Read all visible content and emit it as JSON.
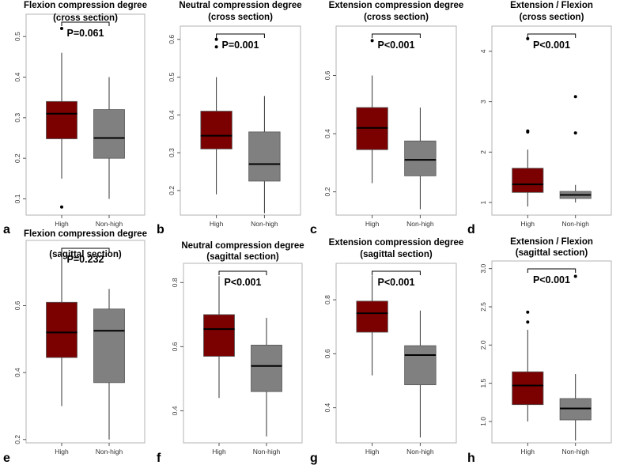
{
  "colors": {
    "high": "#7b0000",
    "nonhigh": "#808080",
    "frame": "#b3b3b3",
    "whisker": "#333333"
  },
  "chart_data": [
    {
      "type": "boxplot",
      "letter": "a",
      "title": [
        "Flexion compression degree",
        "(cross section)"
      ],
      "pvalue": "P=0.061",
      "categories": [
        "High",
        "Non-high"
      ],
      "ylim": [
        0.06,
        0.555
      ],
      "yticks": [
        0.1,
        0.2,
        0.3,
        0.4,
        0.5
      ],
      "ytick_labels": [
        "0.1",
        "0.2",
        "0.3",
        "0.4",
        "0.5"
      ],
      "boxes": [
        {
          "min": 0.15,
          "q1": 0.248,
          "median": 0.31,
          "q3": 0.34,
          "max": 0.46,
          "outliers": [
            0.52,
            0.08
          ]
        },
        {
          "min": 0.1,
          "q1": 0.2,
          "median": 0.25,
          "q3": 0.32,
          "max": 0.4,
          "outliers": []
        }
      ]
    },
    {
      "type": "boxplot",
      "letter": "b",
      "title": [
        "Neutral compression degree",
        "(cross section)"
      ],
      "pvalue": "P=0.001",
      "categories": [
        "High",
        "Non-high"
      ],
      "ylim": [
        0.135,
        0.635
      ],
      "yticks": [
        0.2,
        0.3,
        0.4,
        0.5,
        0.6
      ],
      "ytick_labels": [
        "0.2",
        "0.3",
        "0.4",
        "0.5",
        "0.6"
      ],
      "boxes": [
        {
          "min": 0.19,
          "q1": 0.31,
          "median": 0.345,
          "q3": 0.41,
          "max": 0.5,
          "outliers": [
            0.6,
            0.58
          ]
        },
        {
          "min": 0.14,
          "q1": 0.225,
          "median": 0.27,
          "q3": 0.355,
          "max": 0.45,
          "outliers": []
        }
      ]
    },
    {
      "type": "boxplot",
      "letter": "c",
      "title": [
        "Extension compression degree",
        "(cross section)"
      ],
      "pvalue": "P<0.001",
      "categories": [
        "High",
        "Non-high"
      ],
      "ylim": [
        0.12,
        0.77
      ],
      "yticks": [
        0.2,
        0.4,
        0.6
      ],
      "ytick_labels": [
        "0.2",
        "0.4",
        "0.6"
      ],
      "boxes": [
        {
          "min": 0.23,
          "q1": 0.345,
          "median": 0.42,
          "q3": 0.49,
          "max": 0.6,
          "outliers": [
            0.72
          ]
        },
        {
          "min": 0.14,
          "q1": 0.255,
          "median": 0.31,
          "q3": 0.375,
          "max": 0.49,
          "outliers": []
        }
      ]
    },
    {
      "type": "boxplot",
      "letter": "d",
      "title": [
        "Extension / Flexion",
        "(cross section)"
      ],
      "pvalue": "P<0.001",
      "categories": [
        "High",
        "Non-high"
      ],
      "ylim": [
        0.75,
        4.5
      ],
      "yticks": [
        1,
        2,
        3,
        4
      ],
      "ytick_labels": [
        "1",
        "2",
        "3",
        "4"
      ],
      "boxes": [
        {
          "min": 0.92,
          "q1": 1.2,
          "median": 1.36,
          "q3": 1.68,
          "max": 2.05,
          "outliers": [
            4.25,
            2.42,
            2.4
          ]
        },
        {
          "min": 1.0,
          "q1": 1.08,
          "median": 1.15,
          "q3": 1.22,
          "max": 1.35,
          "outliers": [
            3.1,
            2.38
          ]
        }
      ]
    },
    {
      "type": "boxplot",
      "letter": "e",
      "title": [
        "Flexion compression degree",
        "(sagittal section)"
      ],
      "pvalue": "P=0.232",
      "categories": [
        "High",
        "Non-high"
      ],
      "ylim": [
        0.19,
        0.795
      ],
      "yticks": [
        0.2,
        0.4,
        0.6
      ],
      "ytick_labels": [
        "0.2",
        "0.4",
        "0.6"
      ],
      "boxes": [
        {
          "min": 0.3,
          "q1": 0.445,
          "median": 0.52,
          "q3": 0.61,
          "max": 0.76,
          "outliers": []
        },
        {
          "min": 0.2,
          "q1": 0.37,
          "median": 0.525,
          "q3": 0.59,
          "max": 0.65,
          "outliers": []
        }
      ]
    },
    {
      "type": "boxplot",
      "letter": "f",
      "title": [
        "Neutral compression degree",
        "(sagittal section)"
      ],
      "pvalue": "P<0.001",
      "categories": [
        "High",
        "Non-high"
      ],
      "ylim": [
        0.3,
        0.86
      ],
      "yticks": [
        0.4,
        0.6,
        0.8
      ],
      "ytick_labels": [
        "0.4",
        "0.6",
        "0.8"
      ],
      "boxes": [
        {
          "min": 0.44,
          "q1": 0.57,
          "median": 0.655,
          "q3": 0.7,
          "max": 0.82,
          "outliers": []
        },
        {
          "min": 0.32,
          "q1": 0.46,
          "median": 0.54,
          "q3": 0.605,
          "max": 0.69,
          "outliers": []
        }
      ]
    },
    {
      "type": "boxplot",
      "letter": "g",
      "title": [
        "Extension compression degree",
        "(sagittal section)"
      ],
      "pvalue": "P<0.001",
      "categories": [
        "High",
        "Non-high"
      ],
      "ylim": [
        0.27,
        0.935
      ],
      "yticks": [
        0.4,
        0.6,
        0.8
      ],
      "ytick_labels": [
        "0.4",
        "0.6",
        "0.8"
      ],
      "boxes": [
        {
          "min": 0.52,
          "q1": 0.68,
          "median": 0.75,
          "q3": 0.795,
          "max": 0.89,
          "outliers": []
        },
        {
          "min": 0.29,
          "q1": 0.485,
          "median": 0.595,
          "q3": 0.63,
          "max": 0.76,
          "outliers": []
        }
      ]
    },
    {
      "type": "boxplot",
      "letter": "h",
      "title": [
        "Extension / Flexion",
        "(sagittal section)"
      ],
      "pvalue": "P<0.001",
      "categories": [
        "High",
        "Non-high"
      ],
      "ylim": [
        0.72,
        3.1
      ],
      "yticks": [
        1.0,
        1.5,
        2.0,
        2.5,
        3.0
      ],
      "ytick_labels": [
        "1.0",
        "1.5",
        "2.0",
        "2.5",
        "3.0"
      ],
      "boxes": [
        {
          "min": 1.0,
          "q1": 1.22,
          "median": 1.47,
          "q3": 1.65,
          "max": 2.2,
          "outliers": [
            2.43,
            2.3
          ]
        },
        {
          "min": 0.75,
          "q1": 1.02,
          "median": 1.17,
          "q3": 1.3,
          "max": 1.62,
          "outliers": [
            2.9
          ]
        }
      ]
    }
  ]
}
